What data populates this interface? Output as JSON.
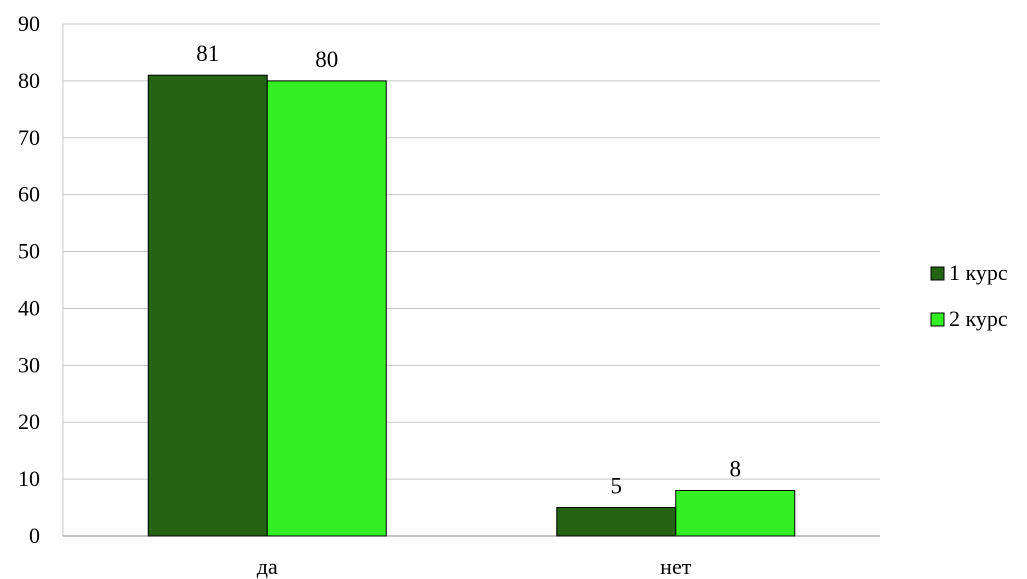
{
  "chart_data": {
    "type": "bar",
    "categories": [
      "да",
      "нет"
    ],
    "series": [
      {
        "name": "1 курс",
        "values": [
          81,
          5
        ],
        "color": "#246314"
      },
      {
        "name": "2 курс",
        "values": [
          80,
          8
        ],
        "color": "#33ee22"
      }
    ],
    "ylim": [
      0,
      90
    ],
    "yticks": [
      0,
      10,
      20,
      30,
      40,
      50,
      60,
      70,
      80,
      90
    ],
    "grid": true,
    "legend": "right",
    "data_labels": true
  }
}
